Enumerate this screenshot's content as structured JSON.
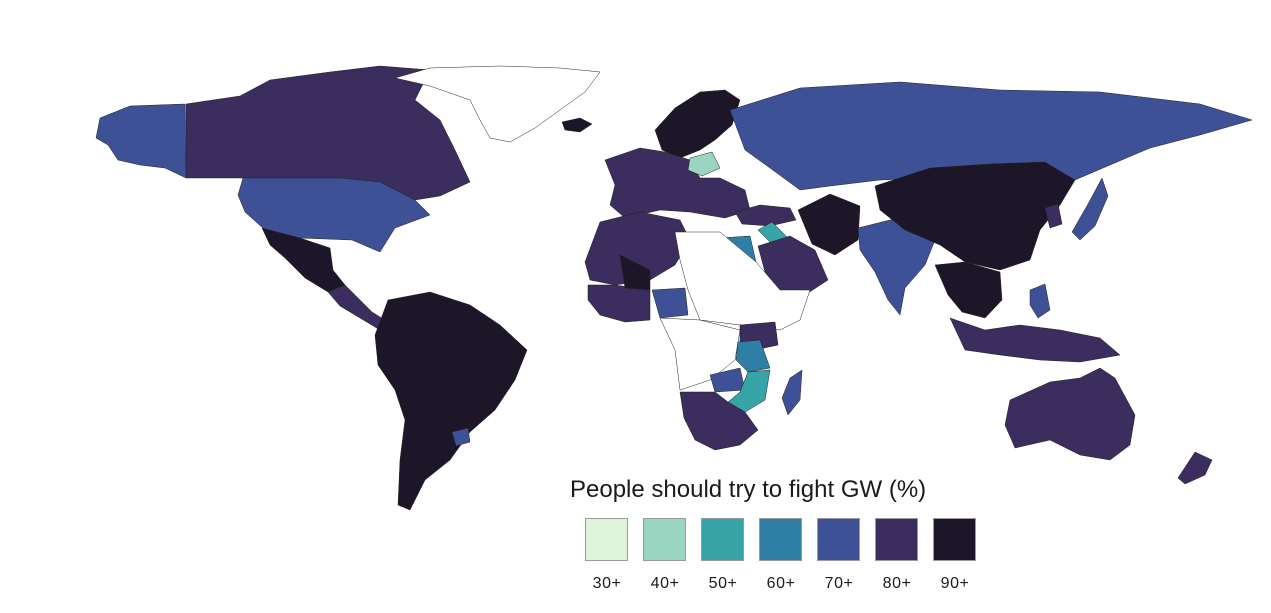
{
  "legend": {
    "title": "People should try to fight GW (%)",
    "bins": [
      {
        "label": "30+",
        "color": "#e0f3db"
      },
      {
        "label": "40+",
        "color": "#99d5c0"
      },
      {
        "label": "50+",
        "color": "#37a4a8"
      },
      {
        "label": "60+",
        "color": "#2f7ea6"
      },
      {
        "label": "70+",
        "color": "#3f5196"
      },
      {
        "label": "80+",
        "color": "#3b2d5e"
      },
      {
        "label": "90+",
        "color": "#1d1628"
      }
    ],
    "no_data_color": "#ffffff"
  },
  "regions": [
    {
      "name": "alaska",
      "bin": 4
    },
    {
      "name": "canada",
      "bin": 5
    },
    {
      "name": "greenland",
      "bin": -1
    },
    {
      "name": "usa",
      "bin": 4
    },
    {
      "name": "mexico",
      "bin": 6
    },
    {
      "name": "central-america",
      "bin": 5
    },
    {
      "name": "south-america",
      "bin": 6
    },
    {
      "name": "uruguay",
      "bin": 4
    },
    {
      "name": "iceland",
      "bin": 6
    },
    {
      "name": "scandinavia",
      "bin": 6
    },
    {
      "name": "western-europe",
      "bin": 5
    },
    {
      "name": "poland",
      "bin": 1
    },
    {
      "name": "russia",
      "bin": 4
    },
    {
      "name": "turkey",
      "bin": 5
    },
    {
      "name": "north-africa",
      "bin": 5
    },
    {
      "name": "egypt",
      "bin": 3
    },
    {
      "name": "israel",
      "bin": 2
    },
    {
      "name": "middle-east",
      "bin": 5
    },
    {
      "name": "iran",
      "bin": 6
    },
    {
      "name": "india",
      "bin": 4
    },
    {
      "name": "china",
      "bin": 6
    },
    {
      "name": "southeast-asia",
      "bin": 6
    },
    {
      "name": "indonesia",
      "bin": 5
    },
    {
      "name": "philippines",
      "bin": 4
    },
    {
      "name": "japan",
      "bin": 4
    },
    {
      "name": "korea",
      "bin": 5
    },
    {
      "name": "west-africa",
      "bin": 5
    },
    {
      "name": "mali",
      "bin": 6
    },
    {
      "name": "nigeria",
      "bin": 4
    },
    {
      "name": "sahel-horn",
      "bin": -1
    },
    {
      "name": "east-africa",
      "bin": 5
    },
    {
      "name": "tanzania",
      "bin": 3
    },
    {
      "name": "mozambique",
      "bin": 2
    },
    {
      "name": "zambia",
      "bin": 4
    },
    {
      "name": "central-africa",
      "bin": -1
    },
    {
      "name": "southern-africa",
      "bin": 5
    },
    {
      "name": "madagascar",
      "bin": 4
    },
    {
      "name": "australia",
      "bin": 5
    },
    {
      "name": "new-zealand",
      "bin": 5
    }
  ]
}
